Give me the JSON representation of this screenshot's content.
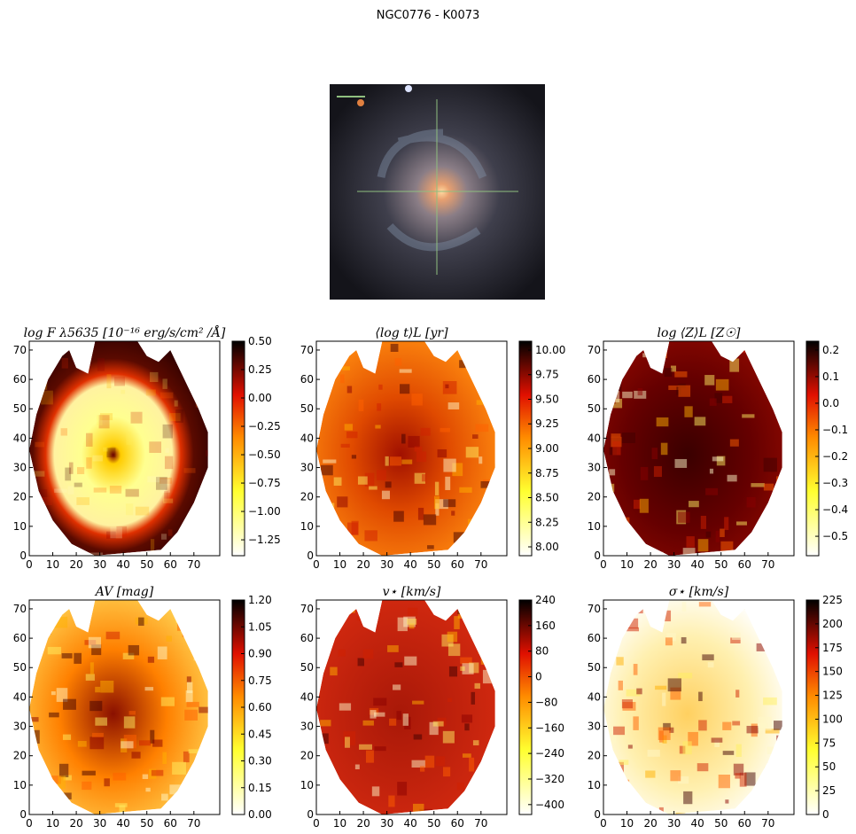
{
  "title": "NGC0776 - K0073",
  "panels": [
    {
      "title": "log F λ5635 [10⁻¹⁶ erg/s/cm² /Å]",
      "xlim": [
        0,
        81
      ],
      "xticks": [
        0,
        10,
        20,
        30,
        40,
        50,
        60,
        70
      ],
      "ylim": [
        0,
        73
      ],
      "yticks": [
        0,
        10,
        20,
        30,
        40,
        50,
        60,
        70
      ],
      "colorbar": {
        "lim": [
          -1.39,
          0.5
        ],
        "ticks": [
          {
            "value": 0.5,
            "label": "0.50"
          },
          {
            "value": 0.25,
            "label": "0.25"
          },
          {
            "value": 0,
            "label": "0.00"
          },
          {
            "value": -0.25,
            "label": "−0.25"
          },
          {
            "value": -0.5,
            "label": "−0.50"
          },
          {
            "value": -0.75,
            "label": "−0.75"
          },
          {
            "value": -1,
            "label": "−1.00"
          },
          {
            "value": -1.25,
            "label": "−1.25"
          }
        ]
      }
    },
    {
      "title": "⟨log t⟩L [yr]",
      "xlim": [
        0,
        81
      ],
      "xticks": [
        0,
        10,
        20,
        30,
        40,
        50,
        60,
        70
      ],
      "ylim": [
        0,
        73
      ],
      "yticks": [
        0,
        10,
        20,
        30,
        40,
        50,
        60,
        70
      ],
      "colorbar": {
        "lim": [
          7.91,
          10.09
        ],
        "ticks": [
          {
            "value": 10,
            "label": "10.00"
          },
          9.75,
          {
            "value": 9.5,
            "label": "9.50"
          },
          9.25,
          {
            "value": 9,
            "label": "9.00"
          },
          8.75,
          {
            "value": 8.5,
            "label": "8.50"
          },
          8.25,
          {
            "value": 8,
            "label": "8.00"
          }
        ]
      }
    },
    {
      "title": "log ⟨Z⟩L [Z☉]",
      "xlim": [
        0,
        81
      ],
      "xticks": [
        0,
        10,
        20,
        30,
        40,
        50,
        60,
        70
      ],
      "ylim": [
        0,
        73
      ],
      "yticks": [
        0,
        10,
        20,
        30,
        40,
        50,
        60,
        70
      ],
      "colorbar": {
        "lim": [
          -0.573,
          0.233
        ],
        "ticks": [
          0.2,
          0.1,
          {
            "value": 0,
            "label": "0.0"
          },
          {
            "value": -0.1,
            "label": "−0.1"
          },
          {
            "value": -0.2,
            "label": "−0.2"
          },
          {
            "value": -0.3,
            "label": "−0.3"
          },
          {
            "value": -0.4,
            "label": "−0.4"
          },
          {
            "value": -0.5,
            "label": "−0.5"
          }
        ]
      }
    },
    {
      "title": "AV [mag]",
      "xlim": [
        0,
        81
      ],
      "xticks": [
        0,
        10,
        20,
        30,
        40,
        50,
        60,
        70
      ],
      "ylim": [
        0,
        73
      ],
      "yticks": [
        0,
        10,
        20,
        30,
        40,
        50,
        60,
        70
      ],
      "colorbar": {
        "lim": [
          0,
          1.2
        ],
        "ticks": [
          {
            "value": 1.2,
            "label": "1.20"
          },
          1.05,
          {
            "value": 0.9,
            "label": "0.90"
          },
          0.75,
          {
            "value": 0.6,
            "label": "0.60"
          },
          0.45,
          {
            "value": 0.3,
            "label": "0.30"
          },
          0.15,
          {
            "value": 0,
            "label": "0.00"
          }
        ]
      }
    },
    {
      "title": "v⋆ [km/s]",
      "xlim": [
        0,
        81
      ],
      "xticks": [
        0,
        10,
        20,
        30,
        40,
        50,
        60,
        70
      ],
      "ylim": [
        0,
        73
      ],
      "yticks": [
        0,
        10,
        20,
        30,
        40,
        50,
        60,
        70
      ],
      "colorbar": {
        "lim": [
          -431,
          240
        ],
        "ticks": [
          240,
          160,
          80,
          0,
          {
            "value": -80,
            "label": "−80"
          },
          {
            "value": -160,
            "label": "−160"
          },
          {
            "value": -240,
            "label": "−240"
          },
          {
            "value": -320,
            "label": "−320"
          },
          {
            "value": -400,
            "label": "−400"
          }
        ]
      }
    },
    {
      "title": "σ⋆ [km/s]",
      "xlim": [
        0,
        81
      ],
      "xticks": [
        0,
        10,
        20,
        30,
        40,
        50,
        60,
        70
      ],
      "ylim": [
        0,
        73
      ],
      "yticks": [
        0,
        10,
        20,
        30,
        40,
        50,
        60,
        70
      ],
      "colorbar": {
        "lim": [
          0,
          225
        ],
        "ticks": [
          225,
          200,
          175,
          150,
          125,
          100,
          75,
          50,
          25,
          0
        ]
      }
    }
  ]
}
